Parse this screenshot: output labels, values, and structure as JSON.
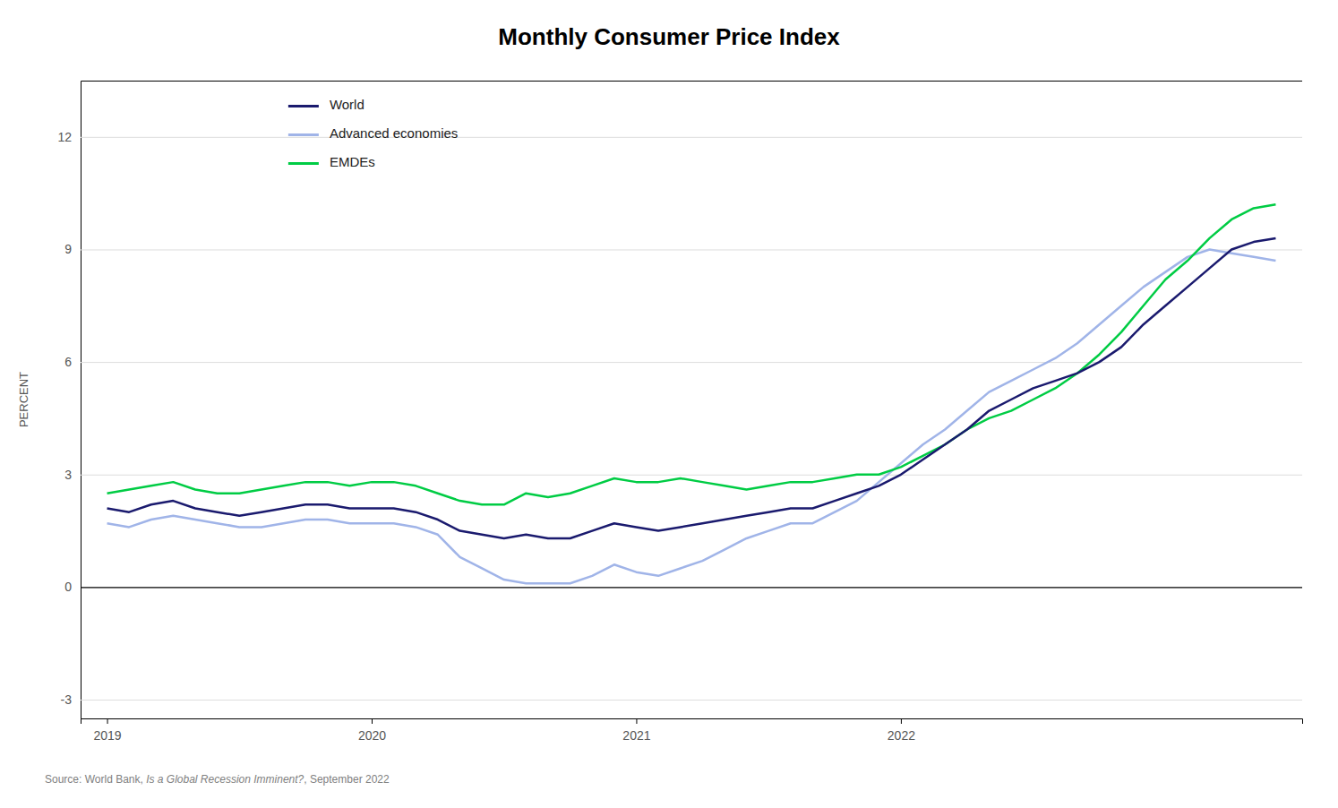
{
  "chart_data": {
    "type": "line",
    "title": "Monthly Consumer Price Index",
    "ylabel": "PERCENT",
    "annotations": [
      "Source: World Bank, ",
      "Is a Global Recession Imminent?",
      ", September 2022"
    ],
    "x": [
      2019,
      2019.0833333333,
      2019.1666666667,
      2019.25,
      2019.3333333333,
      2019.4166666667,
      2019.5,
      2019.5833333333,
      2019.6666666667,
      2019.75,
      2019.8333333333,
      2019.9166666667,
      2020,
      2020.0833333333,
      2020.1666666667,
      2020.25,
      2020.3333333333,
      2020.4166666667,
      2020.5,
      2020.5833333333,
      2020.6666666667,
      2020.75,
      2020.8333333333,
      2020.9166666667,
      2021,
      2021.0833333333,
      2021.1666666667,
      2021.25,
      2021.3333333333,
      2021.4166666667,
      2021.5,
      2021.5833333333,
      2021.6666666667,
      2021.75,
      2021.8333333333,
      2021.9166666667,
      2022,
      2022.0833333333,
      2022.1666666667,
      2022.25,
      2022.3333333333,
      2022.4166666667,
      2022.5,
      2022.5833333333,
      2022.6666666667,
      2022.75,
      2022.8333333333,
      2022.9166666667,
      2023,
      2023.0833333333,
      2023.1666666667,
      2023.25,
      2023.3333333333,
      2023.4166666667
    ],
    "series": [
      {
        "name": "World",
        "color": "#1a1a6e",
        "values": [
          2.1,
          2.0,
          2.2,
          2.3,
          2.1,
          2.0,
          1.9,
          2.0,
          2.1,
          2.2,
          2.2,
          2.1,
          2.1,
          2.1,
          2.0,
          1.8,
          1.5,
          1.4,
          1.3,
          1.4,
          1.3,
          1.3,
          1.5,
          1.7,
          1.6,
          1.5,
          1.6,
          1.7,
          1.8,
          1.9,
          2.0,
          2.1,
          2.1,
          2.3,
          2.5,
          2.7,
          3.0,
          3.4,
          3.8,
          4.2,
          4.7,
          5.0,
          5.3,
          5.5,
          5.7,
          6.0,
          6.4,
          7.0,
          7.5,
          8.0,
          8.5,
          9.0,
          9.2,
          9.3
        ]
      },
      {
        "name": "Advanced economies",
        "color": "#a0b4e8",
        "values": [
          1.7,
          1.6,
          1.8,
          1.9,
          1.8,
          1.7,
          1.6,
          1.6,
          1.7,
          1.8,
          1.8,
          1.7,
          1.7,
          1.7,
          1.6,
          1.4,
          0.8,
          0.5,
          0.2,
          0.1,
          0.1,
          0.1,
          0.3,
          0.6,
          0.4,
          0.3,
          0.5,
          0.7,
          1.0,
          1.3,
          1.5,
          1.7,
          1.7,
          2.0,
          2.3,
          2.8,
          3.3,
          3.8,
          4.2,
          4.7,
          5.2,
          5.5,
          5.8,
          6.1,
          6.5,
          7.0,
          7.5,
          8.0,
          8.4,
          8.8,
          9.0,
          8.9,
          8.8,
          8.7
        ]
      },
      {
        "name": "EMDEs",
        "color": "#00cc44",
        "values": [
          2.5,
          2.6,
          2.7,
          2.8,
          2.6,
          2.5,
          2.5,
          2.6,
          2.7,
          2.8,
          2.8,
          2.7,
          2.8,
          2.8,
          2.7,
          2.5,
          2.3,
          2.2,
          2.2,
          2.5,
          2.4,
          2.5,
          2.7,
          2.9,
          2.8,
          2.8,
          2.9,
          2.8,
          2.7,
          2.6,
          2.7,
          2.8,
          2.8,
          2.9,
          3.0,
          3.0,
          3.2,
          3.5,
          3.8,
          4.2,
          4.5,
          4.7,
          5.0,
          5.3,
          5.7,
          6.2,
          6.8,
          7.5,
          8.2,
          8.7,
          9.3,
          9.8,
          10.1,
          10.2
        ]
      }
    ],
    "xlim": [
      2018.9,
      2023.5166666667
    ],
    "xticks": [
      2019,
      2020,
      2021,
      2022
    ],
    "ylim": [
      -3.5,
      13.5
    ],
    "yticks": [
      -3,
      0,
      3,
      6,
      9,
      12
    ],
    "grid": true,
    "legend": "upper left"
  }
}
